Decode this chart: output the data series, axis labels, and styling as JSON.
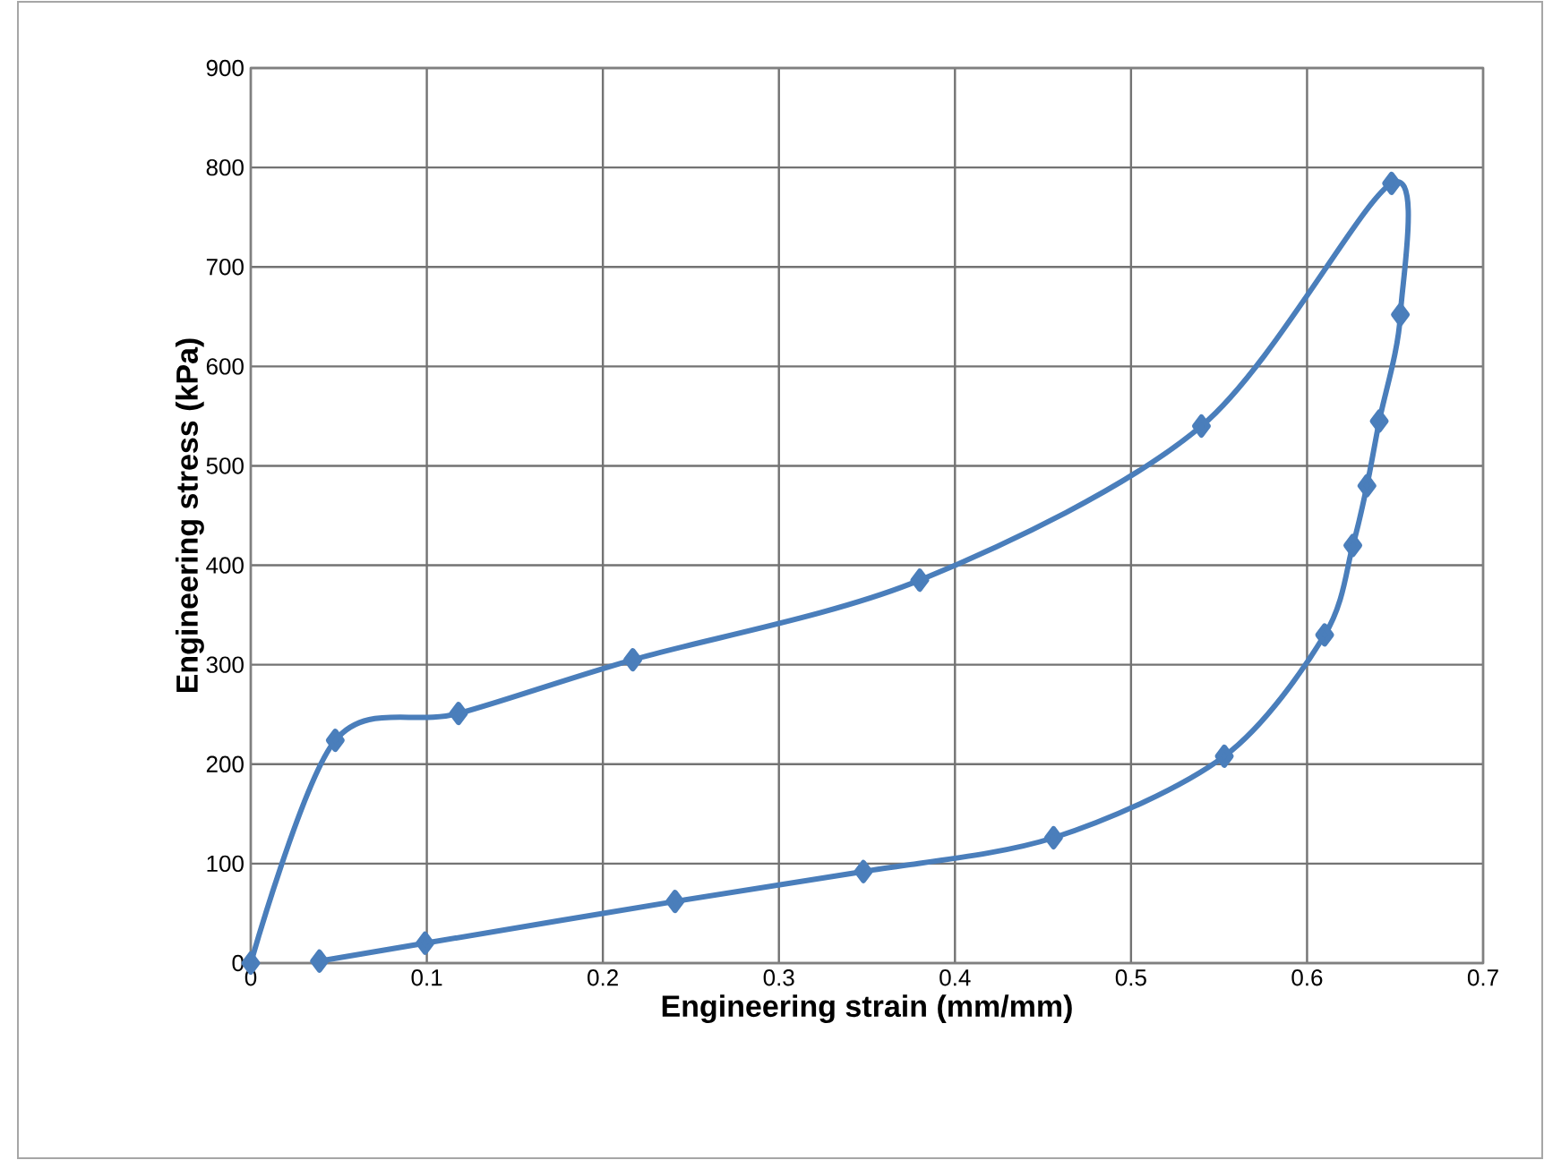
{
  "chart_data": {
    "type": "line",
    "xlabel": "Engineering strain (mm/mm)",
    "ylabel": "Engineering stress (kPa)",
    "xlim": [
      0,
      0.7
    ],
    "xticks": [
      0,
      0.1,
      0.2,
      0.3,
      0.4,
      0.5,
      0.6,
      0.7
    ],
    "ylim": [
      0,
      900
    ],
    "yticks": [
      0,
      100,
      200,
      300,
      400,
      500,
      600,
      700,
      800,
      900
    ],
    "grid": true,
    "marker": "diamond",
    "line_style": "solid",
    "series": [
      {
        "color": "#4a7ebb",
        "x": [
          0,
          0.048,
          0.118,
          0.217,
          0.38,
          0.54,
          0.648,
          0.653,
          0.641,
          0.634,
          0.626,
          0.61,
          0.553,
          0.456,
          0.348,
          0.241,
          0.099,
          0.039
        ],
        "values": [
          0,
          224,
          251,
          305,
          385,
          540,
          784,
          652,
          545,
          480,
          420,
          330,
          208,
          126,
          92,
          62,
          20,
          2
        ]
      }
    ]
  }
}
